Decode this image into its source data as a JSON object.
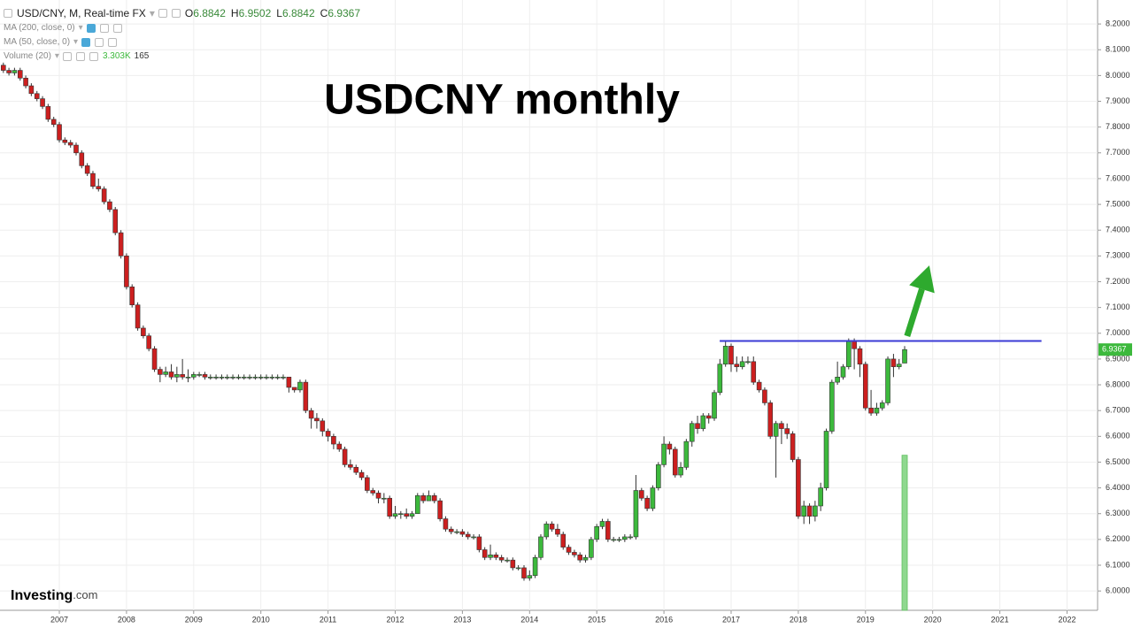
{
  "header": {
    "symbol": "USD/CNY, M, Real-time FX",
    "ohlc": [
      {
        "key": "O",
        "value": 6.8842
      },
      {
        "key": "H",
        "value": 6.9502
      },
      {
        "key": "L",
        "value": 6.8842
      },
      {
        "key": "C",
        "value": 6.9367
      }
    ],
    "indicators": [
      {
        "name": "MA (200, close, 0)"
      },
      {
        "name": "MA (50, close, 0)"
      },
      {
        "name": "Volume (20)",
        "values": [
          {
            "value": 3303,
            "label": "3.303K"
          },
          165
        ]
      }
    ],
    "watermark": {
      "brand": "Investing",
      "suffix": ".com"
    }
  },
  "chart_data": {
    "type": "candlestick",
    "title": "USDCNY monthly",
    "up_color": "#3cb93c",
    "down_color": "#cc1f1f",
    "xlim": [
      2006.117,
      2022.455
    ],
    "xticks": [
      2007,
      2008,
      2009,
      2010,
      2011,
      2012,
      2013,
      2014,
      2015,
      2016,
      2017,
      2018,
      2019,
      2020,
      2021,
      2022
    ],
    "ylim": [
      5.925,
      8.293
    ],
    "yticks": [
      {
        "value": 6.0,
        "label": "6.0000"
      },
      {
        "value": 6.1,
        "label": "6.1000"
      },
      {
        "value": 6.2,
        "label": "6.2000"
      },
      {
        "value": 6.3,
        "label": "6.3000"
      },
      {
        "value": 6.4,
        "label": "6.4000"
      },
      {
        "value": 6.5,
        "label": "6.5000"
      },
      {
        "value": 6.6,
        "label": "6.6000"
      },
      {
        "value": 6.7,
        "label": "6.7000"
      },
      {
        "value": 6.8,
        "label": "6.8000"
      },
      {
        "value": 6.9,
        "label": "6.9000"
      },
      {
        "value": 7.0,
        "label": "7.0000"
      },
      {
        "value": 7.1,
        "label": "7.1000"
      },
      {
        "value": 7.2,
        "label": "7.2000"
      },
      {
        "value": 7.3,
        "label": "7.3000"
      },
      {
        "value": 7.4,
        "label": "7.4000"
      },
      {
        "value": 7.5,
        "label": "7.5000"
      },
      {
        "value": 7.6,
        "label": "7.6000"
      },
      {
        "value": 7.7,
        "label": "7.7000"
      },
      {
        "value": 7.8,
        "label": "7.8000"
      },
      {
        "value": 7.9,
        "label": "7.9000"
      },
      {
        "value": 8.0,
        "label": "8.0000"
      },
      {
        "value": 8.1,
        "label": "8.1000"
      },
      {
        "value": 8.2,
        "label": "8.2000"
      }
    ],
    "grid": true,
    "last_price": {
      "value": 6.9367,
      "label": "6.9367"
    },
    "hline": {
      "value": 6.97,
      "x": [
        2016.83,
        2021.62
      ],
      "color": "#3b3bd6"
    },
    "arrow": {
      "from": [
        2019.62,
        6.989
      ],
      "to": [
        2019.95,
        7.263
      ],
      "color": "#2eaa2e"
    },
    "volume": {
      "x": 2019.583,
      "value": 3303,
      "ylim": [
        0,
        13000
      ],
      "color": "#8fd88f"
    },
    "x": [
      2006.167,
      2006.25,
      2006.333,
      2006.417,
      2006.5,
      2006.583,
      2006.667,
      2006.75,
      2006.833,
      2006.917,
      2007.0,
      2007.083,
      2007.167,
      2007.25,
      2007.333,
      2007.417,
      2007.5,
      2007.583,
      2007.667,
      2007.75,
      2007.833,
      2007.917,
      2008.0,
      2008.083,
      2008.167,
      2008.25,
      2008.333,
      2008.417,
      2008.5,
      2008.583,
      2008.667,
      2008.75,
      2008.833,
      2008.917,
      2009.0,
      2009.083,
      2009.167,
      2009.25,
      2009.333,
      2009.417,
      2009.5,
      2009.583,
      2009.667,
      2009.75,
      2009.833,
      2009.917,
      2010.0,
      2010.083,
      2010.167,
      2010.25,
      2010.333,
      2010.417,
      2010.5,
      2010.583,
      2010.667,
      2010.75,
      2010.833,
      2010.917,
      2011.0,
      2011.083,
      2011.167,
      2011.25,
      2011.333,
      2011.417,
      2011.5,
      2011.583,
      2011.667,
      2011.75,
      2011.833,
      2011.917,
      2012.0,
      2012.083,
      2012.167,
      2012.25,
      2012.333,
      2012.417,
      2012.5,
      2012.583,
      2012.667,
      2012.75,
      2012.833,
      2012.917,
      2013.0,
      2013.083,
      2013.167,
      2013.25,
      2013.333,
      2013.417,
      2013.5,
      2013.583,
      2013.667,
      2013.75,
      2013.833,
      2013.917,
      2014.0,
      2014.083,
      2014.167,
      2014.25,
      2014.333,
      2014.417,
      2014.5,
      2014.583,
      2014.667,
      2014.75,
      2014.833,
      2014.917,
      2015.0,
      2015.083,
      2015.167,
      2015.25,
      2015.333,
      2015.417,
      2015.5,
      2015.583,
      2015.667,
      2015.75,
      2015.833,
      2015.917,
      2016.0,
      2016.083,
      2016.167,
      2016.25,
      2016.333,
      2016.417,
      2016.5,
      2016.583,
      2016.667,
      2016.75,
      2016.833,
      2016.917,
      2017.0,
      2017.083,
      2017.167,
      2017.25,
      2017.333,
      2017.417,
      2017.5,
      2017.583,
      2017.667,
      2017.75,
      2017.833,
      2017.917,
      2018.0,
      2018.083,
      2018.167,
      2018.25,
      2018.333,
      2018.417,
      2018.5,
      2018.583,
      2018.667,
      2018.75,
      2018.833,
      2018.917,
      2019.0,
      2019.083,
      2019.167,
      2019.25,
      2019.333,
      2019.417,
      2019.5,
      2019.583
    ],
    "ohlc": [
      [
        8.04,
        8.05,
        8.01,
        8.02
      ],
      [
        8.02,
        8.03,
        8.0,
        8.01
      ],
      [
        8.01,
        8.03,
        8.0,
        8.02
      ],
      [
        8.02,
        8.03,
        7.98,
        7.99
      ],
      [
        7.99,
        8.0,
        7.95,
        7.96
      ],
      [
        7.96,
        7.97,
        7.92,
        7.93
      ],
      [
        7.93,
        7.94,
        7.9,
        7.91
      ],
      [
        7.91,
        7.92,
        7.87,
        7.88
      ],
      [
        7.88,
        7.89,
        7.82,
        7.83
      ],
      [
        7.83,
        7.84,
        7.8,
        7.81
      ],
      [
        7.81,
        7.82,
        7.74,
        7.75
      ],
      [
        7.75,
        7.76,
        7.73,
        7.74
      ],
      [
        7.74,
        7.75,
        7.72,
        7.73
      ],
      [
        7.73,
        7.74,
        7.69,
        7.7
      ],
      [
        7.7,
        7.71,
        7.64,
        7.65
      ],
      [
        7.65,
        7.66,
        7.61,
        7.62
      ],
      [
        7.62,
        7.63,
        7.56,
        7.57
      ],
      [
        7.57,
        7.6,
        7.55,
        7.56
      ],
      [
        7.56,
        7.57,
        7.5,
        7.51
      ],
      [
        7.51,
        7.52,
        7.47,
        7.48
      ],
      [
        7.48,
        7.49,
        7.38,
        7.39
      ],
      [
        7.39,
        7.4,
        7.29,
        7.3
      ],
      [
        7.3,
        7.31,
        7.17,
        7.18
      ],
      [
        7.18,
        7.19,
        7.1,
        7.11
      ],
      [
        7.11,
        7.12,
        7.01,
        7.02
      ],
      [
        7.02,
        7.03,
        6.98,
        6.99
      ],
      [
        6.99,
        7.0,
        6.93,
        6.94
      ],
      [
        6.94,
        6.95,
        6.85,
        6.86
      ],
      [
        6.86,
        6.87,
        6.81,
        6.84
      ],
      [
        6.84,
        6.87,
        6.83,
        6.85
      ],
      [
        6.85,
        6.88,
        6.82,
        6.83
      ],
      [
        6.83,
        6.87,
        6.81,
        6.84
      ],
      [
        6.84,
        6.9,
        6.82,
        6.83
      ],
      [
        6.83,
        6.86,
        6.81,
        6.83
      ],
      [
        6.83,
        6.85,
        6.82,
        6.84
      ],
      [
        6.84,
        6.85,
        6.83,
        6.84
      ],
      [
        6.84,
        6.85,
        6.82,
        6.83
      ],
      [
        6.83,
        6.84,
        6.82,
        6.83
      ],
      [
        6.83,
        6.84,
        6.82,
        6.83
      ],
      [
        6.83,
        6.84,
        6.82,
        6.83
      ],
      [
        6.83,
        6.84,
        6.82,
        6.83
      ],
      [
        6.83,
        6.84,
        6.82,
        6.83
      ],
      [
        6.83,
        6.84,
        6.82,
        6.83
      ],
      [
        6.83,
        6.84,
        6.82,
        6.83
      ],
      [
        6.83,
        6.84,
        6.82,
        6.83
      ],
      [
        6.83,
        6.84,
        6.82,
        6.83
      ],
      [
        6.83,
        6.84,
        6.82,
        6.83
      ],
      [
        6.83,
        6.84,
        6.82,
        6.83
      ],
      [
        6.83,
        6.84,
        6.82,
        6.83
      ],
      [
        6.83,
        6.84,
        6.82,
        6.83
      ],
      [
        6.83,
        6.84,
        6.82,
        6.83
      ],
      [
        6.83,
        6.83,
        6.77,
        6.79
      ],
      [
        6.79,
        6.79,
        6.77,
        6.78
      ],
      [
        6.78,
        6.82,
        6.77,
        6.81
      ],
      [
        6.81,
        6.82,
        6.69,
        6.7
      ],
      [
        6.7,
        6.71,
        6.63,
        6.67
      ],
      [
        6.67,
        6.69,
        6.63,
        6.66
      ],
      [
        6.66,
        6.67,
        6.6,
        6.62
      ],
      [
        6.62,
        6.63,
        6.58,
        6.6
      ],
      [
        6.6,
        6.61,
        6.55,
        6.57
      ],
      [
        6.57,
        6.58,
        6.54,
        6.55
      ],
      [
        6.55,
        6.56,
        6.48,
        6.49
      ],
      [
        6.49,
        6.51,
        6.47,
        6.48
      ],
      [
        6.48,
        6.49,
        6.45,
        6.46
      ],
      [
        6.46,
        6.47,
        6.43,
        6.44
      ],
      [
        6.44,
        6.45,
        6.38,
        6.39
      ],
      [
        6.39,
        6.4,
        6.37,
        6.38
      ],
      [
        6.38,
        6.39,
        6.34,
        6.36
      ],
      [
        6.36,
        6.38,
        6.34,
        6.36
      ],
      [
        6.36,
        6.37,
        6.28,
        6.29
      ],
      [
        6.29,
        6.33,
        6.28,
        6.3
      ],
      [
        6.3,
        6.31,
        6.28,
        6.3
      ],
      [
        6.3,
        6.32,
        6.28,
        6.29
      ],
      [
        6.29,
        6.31,
        6.28,
        6.3
      ],
      [
        6.3,
        6.38,
        6.3,
        6.37
      ],
      [
        6.37,
        6.38,
        6.34,
        6.35
      ],
      [
        6.35,
        6.39,
        6.35,
        6.37
      ],
      [
        6.37,
        6.38,
        6.34,
        6.35
      ],
      [
        6.35,
        6.36,
        6.27,
        6.28
      ],
      [
        6.28,
        6.29,
        6.23,
        6.24
      ],
      [
        6.24,
        6.25,
        6.22,
        6.23
      ],
      [
        6.23,
        6.24,
        6.22,
        6.23
      ],
      [
        6.23,
        6.24,
        6.21,
        6.22
      ],
      [
        6.22,
        6.23,
        6.2,
        6.21
      ],
      [
        6.21,
        6.22,
        6.2,
        6.21
      ],
      [
        6.21,
        6.22,
        6.15,
        6.16
      ],
      [
        6.16,
        6.17,
        6.12,
        6.13
      ],
      [
        6.13,
        6.18,
        6.12,
        6.14
      ],
      [
        6.14,
        6.15,
        6.12,
        6.13
      ],
      [
        6.13,
        6.14,
        6.11,
        6.12
      ],
      [
        6.12,
        6.13,
        6.11,
        6.12
      ],
      [
        6.12,
        6.13,
        6.08,
        6.09
      ],
      [
        6.09,
        6.1,
        6.08,
        6.09
      ],
      [
        6.09,
        6.1,
        6.04,
        6.05
      ],
      [
        6.05,
        6.08,
        6.04,
        6.06
      ],
      [
        6.06,
        6.14,
        6.05,
        6.13
      ],
      [
        6.13,
        6.22,
        6.12,
        6.21
      ],
      [
        6.21,
        6.27,
        6.2,
        6.26
      ],
      [
        6.26,
        6.27,
        6.23,
        6.24
      ],
      [
        6.24,
        6.26,
        6.21,
        6.22
      ],
      [
        6.22,
        6.23,
        6.16,
        6.17
      ],
      [
        6.17,
        6.18,
        6.14,
        6.15
      ],
      [
        6.15,
        6.16,
        6.13,
        6.14
      ],
      [
        6.14,
        6.15,
        6.11,
        6.12
      ],
      [
        6.12,
        6.14,
        6.11,
        6.13
      ],
      [
        6.13,
        6.21,
        6.12,
        6.2
      ],
      [
        6.2,
        6.26,
        6.19,
        6.25
      ],
      [
        6.25,
        6.28,
        6.24,
        6.27
      ],
      [
        6.27,
        6.28,
        6.19,
        6.2
      ],
      [
        6.2,
        6.21,
        6.19,
        6.2
      ],
      [
        6.2,
        6.21,
        6.19,
        6.2
      ],
      [
        6.2,
        6.22,
        6.19,
        6.21
      ],
      [
        6.21,
        6.22,
        6.2,
        6.21
      ],
      [
        6.21,
        6.45,
        6.2,
        6.39
      ],
      [
        6.39,
        6.4,
        6.35,
        6.36
      ],
      [
        6.36,
        6.37,
        6.31,
        6.32
      ],
      [
        6.32,
        6.41,
        6.31,
        6.4
      ],
      [
        6.4,
        6.5,
        6.39,
        6.49
      ],
      [
        6.49,
        6.6,
        6.48,
        6.57
      ],
      [
        6.57,
        6.58,
        6.53,
        6.55
      ],
      [
        6.55,
        6.56,
        6.44,
        6.45
      ],
      [
        6.45,
        6.5,
        6.44,
        6.48
      ],
      [
        6.48,
        6.59,
        6.47,
        6.58
      ],
      [
        6.58,
        6.66,
        6.56,
        6.65
      ],
      [
        6.65,
        6.68,
        6.61,
        6.63
      ],
      [
        6.63,
        6.69,
        6.62,
        6.68
      ],
      [
        6.68,
        6.69,
        6.65,
        6.67
      ],
      [
        6.67,
        6.78,
        6.66,
        6.77
      ],
      [
        6.77,
        6.9,
        6.76,
        6.88
      ],
      [
        6.88,
        6.97,
        6.87,
        6.95
      ],
      [
        6.95,
        6.96,
        6.85,
        6.88
      ],
      [
        6.88,
        6.91,
        6.85,
        6.87
      ],
      [
        6.87,
        6.91,
        6.86,
        6.89
      ],
      [
        6.89,
        6.91,
        6.88,
        6.89
      ],
      [
        6.89,
        6.91,
        6.8,
        6.81
      ],
      [
        6.81,
        6.82,
        6.77,
        6.78
      ],
      [
        6.78,
        6.79,
        6.72,
        6.73
      ],
      [
        6.73,
        6.74,
        6.59,
        6.6
      ],
      [
        6.6,
        6.66,
        6.44,
        6.65
      ],
      [
        6.65,
        6.66,
        6.57,
        6.63
      ],
      [
        6.63,
        6.65,
        6.59,
        6.61
      ],
      [
        6.61,
        6.62,
        6.5,
        6.51
      ],
      [
        6.51,
        6.52,
        6.28,
        6.29
      ],
      [
        6.29,
        6.35,
        6.26,
        6.33
      ],
      [
        6.33,
        6.34,
        6.26,
        6.29
      ],
      [
        6.29,
        6.35,
        6.27,
        6.33
      ],
      [
        6.33,
        6.42,
        6.31,
        6.4
      ],
      [
        6.4,
        6.63,
        6.39,
        6.62
      ],
      [
        6.62,
        6.82,
        6.61,
        6.81
      ],
      [
        6.81,
        6.89,
        6.8,
        6.83
      ],
      [
        6.83,
        6.88,
        6.82,
        6.87
      ],
      [
        6.87,
        6.98,
        6.86,
        6.97
      ],
      [
        6.97,
        6.98,
        6.86,
        6.94
      ],
      [
        6.94,
        6.95,
        6.83,
        6.88
      ],
      [
        6.88,
        6.89,
        6.7,
        6.71
      ],
      [
        6.71,
        6.78,
        6.68,
        6.69
      ],
      [
        6.69,
        6.73,
        6.68,
        6.71
      ],
      [
        6.71,
        6.74,
        6.7,
        6.73
      ],
      [
        6.73,
        6.91,
        6.72,
        6.9
      ],
      [
        6.9,
        6.92,
        6.83,
        6.87
      ],
      [
        6.87,
        6.9,
        6.86,
        6.88
      ],
      [
        6.8842,
        6.9502,
        6.8842,
        6.9367
      ]
    ]
  }
}
